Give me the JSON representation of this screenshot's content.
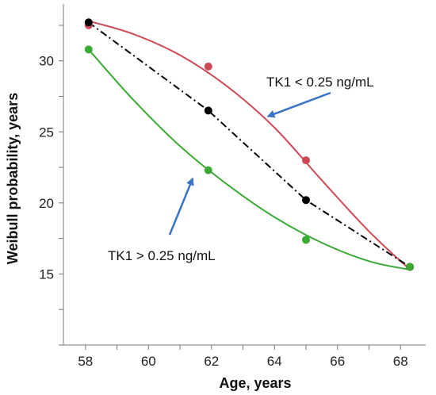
{
  "chart_data": {
    "type": "line",
    "title": "",
    "xlabel": "Age, years",
    "ylabel": "Weibull probability, years",
    "xlim": [
      57.3,
      68.8
    ],
    "ylim": [
      10,
      34
    ],
    "xticks": [
      58,
      60,
      62,
      64,
      66,
      68
    ],
    "yticks": [
      15,
      20,
      25,
      30
    ],
    "grid": false,
    "series": [
      {
        "key": "high",
        "color": "#cc4a57",
        "style": "solid",
        "points": [
          [
            58.1,
            32.5
          ],
          [
            61.9,
            29.6
          ],
          [
            65.0,
            23.0
          ],
          [
            68.3,
            15.5
          ]
        ],
        "curve": [
          [
            58.1,
            32.8
          ],
          [
            59.5,
            31.9
          ],
          [
            61.0,
            30.4
          ],
          [
            62.5,
            28.2
          ],
          [
            64.0,
            25.3
          ],
          [
            65.5,
            21.6
          ],
          [
            67.0,
            18.0
          ],
          [
            68.3,
            15.3
          ]
        ]
      },
      {
        "key": "overall",
        "color": "#000000",
        "style": "dashdot",
        "points": [
          [
            58.1,
            32.7
          ],
          [
            61.9,
            26.5
          ],
          [
            65.0,
            20.2
          ],
          [
            68.3,
            15.5
          ]
        ],
        "curve": [
          [
            58.1,
            32.7
          ],
          [
            61.9,
            26.5
          ],
          [
            65.0,
            20.2
          ],
          [
            68.3,
            15.5
          ]
        ]
      },
      {
        "key": "low",
        "color": "#3aaa35",
        "style": "solid",
        "points": [
          [
            58.1,
            30.8
          ],
          [
            61.9,
            22.3
          ],
          [
            65.0,
            17.4
          ],
          [
            68.3,
            15.5
          ]
        ],
        "curve": [
          [
            58.1,
            30.8
          ],
          [
            59.5,
            27.3
          ],
          [
            61.0,
            24.0
          ],
          [
            62.5,
            21.3
          ],
          [
            64.0,
            19.0
          ],
          [
            65.5,
            17.2
          ],
          [
            67.0,
            15.9
          ],
          [
            68.3,
            15.3
          ]
        ]
      }
    ],
    "annotations": [
      {
        "text": "TK1 < 0.25 ng/mL",
        "target": [
          63.8,
          26.1
        ]
      },
      {
        "text": "TK1 > 0.25 ng/mL",
        "target": [
          61.4,
          21.7
        ]
      }
    ],
    "annotation_color": "#3b73c4"
  }
}
